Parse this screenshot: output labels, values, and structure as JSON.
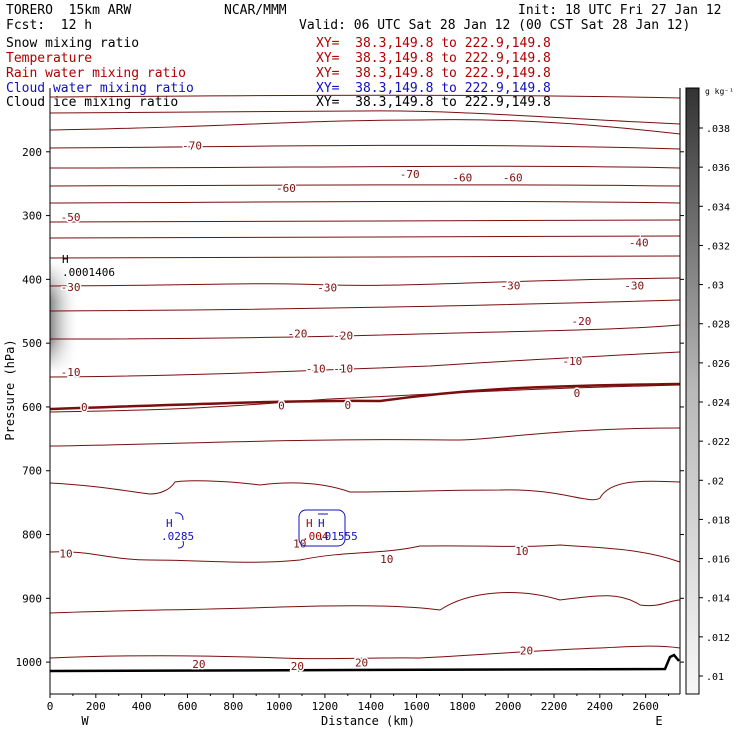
{
  "header": {
    "model": "TORERO  15km ARW",
    "center": "NCAR/MMM",
    "init": "Init: 18 UTC Fri 27 Jan 12",
    "fcst": "Fcst:  12 h",
    "valid": "Valid: 06 UTC Sat 28 Jan 12 (00 CST Sat 28 Jan 12)"
  },
  "legend": [
    {
      "name": "Snow mixing ratio",
      "xy": "XY=  38.3,149.8 to 222.9,149.8",
      "color": "#000000",
      "xy_color": "#b00000"
    },
    {
      "name": "Temperature",
      "xy": "XY=  38.3,149.8 to 222.9,149.8",
      "color": "#b00000",
      "xy_color": "#b00000"
    },
    {
      "name": "Rain water mixing ratio",
      "xy": "XY=  38.3,149.8 to 222.9,149.8",
      "color": "#b00000",
      "xy_color": "#b00000"
    },
    {
      "name": "Cloud water mixing ratio",
      "xy": "XY=  38.3,149.8 to 222.9,149.8",
      "color": "#1010c0",
      "xy_color": "#1010c0"
    },
    {
      "name": "Cloud ice mixing ratio",
      "xy": "XY=  38.3,149.8 to 222.9,149.8",
      "color": "#000000",
      "xy_color": "#000000"
    }
  ],
  "chart_data": {
    "type": "contour",
    "xlabel": "Distance (km)",
    "ylabel": "Pressure (hPa)",
    "xlim": [
      0,
      2750
    ],
    "ylim": [
      1050,
      100
    ],
    "x_ticks": [
      0,
      200,
      400,
      600,
      800,
      1000,
      1200,
      1400,
      1600,
      1800,
      2000,
      2200,
      2400,
      2600
    ],
    "y_ticks": [
      200,
      300,
      400,
      500,
      600,
      700,
      800,
      900,
      1000
    ],
    "x_end_labels": [
      "W",
      "E"
    ],
    "contour_labels": [
      {
        "label": "-70",
        "x": 620,
        "p": 190
      },
      {
        "label": "-70",
        "x": 1570,
        "p": 235
      },
      {
        "label": "-60",
        "x": 1030,
        "p": 257
      },
      {
        "label": "-60",
        "x": 1800,
        "p": 240
      },
      {
        "label": "-60",
        "x": 2020,
        "p": 240
      },
      {
        "label": "-50",
        "x": 90,
        "p": 302
      },
      {
        "label": "-40",
        "x": 2570,
        "p": 342
      },
      {
        "label": "-30",
        "x": 90,
        "p": 412
      },
      {
        "label": "-30",
        "x": 1210,
        "p": 413
      },
      {
        "label": "-30",
        "x": 2010,
        "p": 410
      },
      {
        "label": "-30",
        "x": 2550,
        "p": 410
      },
      {
        "label": "-20",
        "x": 1080,
        "p": 485
      },
      {
        "label": "-20",
        "x": 1280,
        "p": 488
      },
      {
        "label": "-20",
        "x": 2320,
        "p": 465
      },
      {
        "label": "-10",
        "x": 90,
        "p": 545
      },
      {
        "label": "-10",
        "x": 1160,
        "p": 540
      },
      {
        "label": "-10",
        "x": 1280,
        "p": 540
      },
      {
        "label": "-10",
        "x": 2280,
        "p": 528
      },
      {
        "label": "0",
        "x": 150,
        "p": 600
      },
      {
        "label": "0",
        "x": 1010,
        "p": 598
      },
      {
        "label": "0",
        "x": 1300,
        "p": 597
      },
      {
        "label": "0",
        "x": 2300,
        "p": 578
      },
      {
        "label": "10",
        "x": 70,
        "p": 830
      },
      {
        "label": "10",
        "x": 1090,
        "p": 814
      },
      {
        "label": "10",
        "x": 1470,
        "p": 838
      },
      {
        "label": "10",
        "x": 2060,
        "p": 826
      },
      {
        "label": "20",
        "x": 650,
        "p": 1003
      },
      {
        "label": "20",
        "x": 1080,
        "p": 1006
      },
      {
        "label": "20",
        "x": 1360,
        "p": 1001
      },
      {
        "label": "20",
        "x": 2080,
        "p": 982
      }
    ],
    "extrema": [
      {
        "mark": "H",
        "value": ".0001406",
        "x": 30,
        "p": 400,
        "field": "Snow mixing ratio"
      },
      {
        "mark": "H",
        "value": ".0285",
        "x": 530,
        "p": 822,
        "field": "Cloud water mixing ratio"
      },
      {
        "mark": "H",
        "value": ".004",
        "x": 1110,
        "p": 822,
        "field": "Rain water mixing ratio"
      },
      {
        "mark": "H",
        "value": ".01555",
        "x": 1180,
        "p": 822,
        "field": "Cloud water mixing ratio"
      }
    ],
    "colorbar": {
      "label": "g kg⁻¹",
      "ticks": [
        ".038",
        ".036",
        ".034",
        ".032",
        ".03",
        ".028",
        ".026",
        ".024",
        ".022",
        ".02",
        ".018",
        ".016",
        ".014",
        ".012",
        ".01"
      ]
    }
  }
}
